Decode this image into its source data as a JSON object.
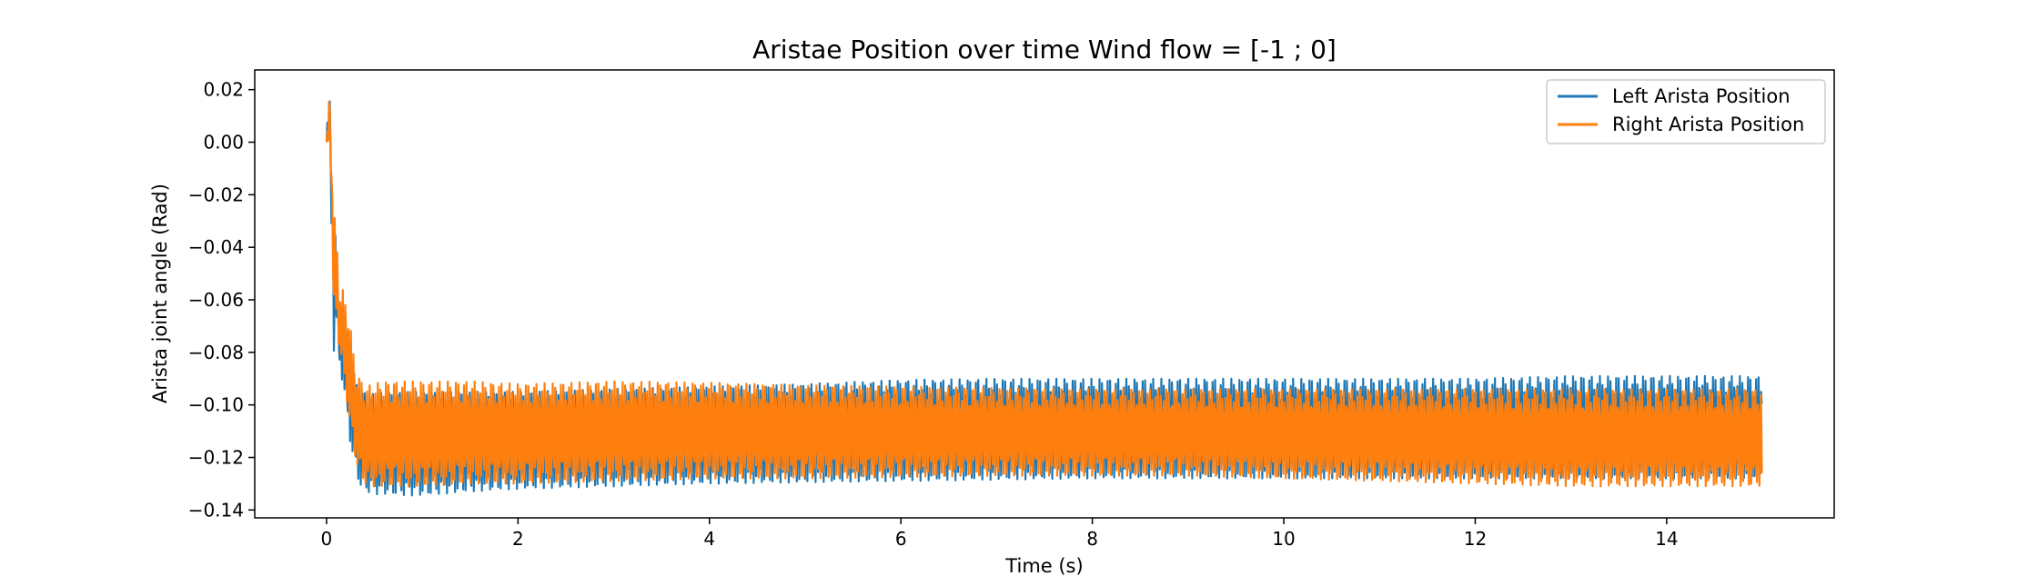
{
  "chart_data": {
    "type": "line",
    "title": "Aristae Position over time Wind flow = [-1 ; 0]",
    "xlabel": "Time (s)",
    "ylabel": "Arista joint angle (Rad)",
    "xlim": [
      -0.75,
      15.75
    ],
    "ylim": [
      -0.143,
      0.0275
    ],
    "xticks": [
      0,
      2,
      4,
      6,
      8,
      10,
      12,
      14
    ],
    "xtick_labels": [
      "0",
      "2",
      "4",
      "6",
      "8",
      "10",
      "12",
      "14"
    ],
    "yticks": [
      0.02,
      0.0,
      -0.02,
      -0.04,
      -0.06,
      -0.08,
      -0.1,
      -0.12,
      -0.14
    ],
    "ytick_labels": [
      "0.02",
      "0.00",
      "−0.02",
      "−0.04",
      "−0.06",
      "−0.08",
      "−0.10",
      "−0.12",
      "−0.14"
    ],
    "grid": false,
    "legend_position": "top-right",
    "series": [
      {
        "name": "Left Arista Position",
        "color": "#1f77b4",
        "x": [
          0.0,
          0.02,
          0.04,
          0.06,
          0.08,
          0.1,
          0.12,
          0.14,
          0.16,
          0.2,
          0.25,
          0.3,
          0.35,
          0.4,
          0.5,
          0.6,
          0.8,
          1.0,
          1.5,
          2.0,
          3.0,
          4.0,
          5.0,
          6.0,
          7.0,
          8.0,
          9.0,
          10.0,
          11.0,
          12.0,
          13.0,
          14.0,
          15.0
        ],
        "y_max": [
          0.0,
          0.018,
          0.015,
          -0.02,
          -0.04,
          -0.03,
          -0.06,
          -0.07,
          -0.06,
          -0.07,
          -0.08,
          -0.09,
          -0.094,
          -0.095,
          -0.096,
          -0.095,
          -0.095,
          -0.095,
          -0.095,
          -0.095,
          -0.094,
          -0.093,
          -0.092,
          -0.0905,
          -0.09,
          -0.09,
          -0.09,
          -0.09,
          -0.09,
          -0.09,
          -0.089,
          -0.089,
          -0.089
        ],
        "y_min": [
          0.0,
          0.0,
          -0.01,
          -0.05,
          -0.086,
          -0.07,
          -0.08,
          -0.085,
          -0.09,
          -0.1,
          -0.115,
          -0.125,
          -0.131,
          -0.133,
          -0.134,
          -0.134,
          -0.1345,
          -0.1345,
          -0.133,
          -0.132,
          -0.131,
          -0.13,
          -0.1295,
          -0.129,
          -0.1285,
          -0.128,
          -0.128,
          -0.128,
          -0.128,
          -0.128,
          -0.128,
          -0.128,
          -0.128
        ]
      },
      {
        "name": "Right Arista Position",
        "color": "#ff7f0e",
        "x": [
          0.0,
          0.02,
          0.04,
          0.06,
          0.08,
          0.1,
          0.12,
          0.14,
          0.16,
          0.2,
          0.25,
          0.3,
          0.35,
          0.4,
          0.5,
          0.6,
          0.8,
          1.0,
          1.5,
          2.0,
          3.0,
          4.0,
          5.0,
          6.0,
          7.0,
          8.0,
          9.0,
          10.0,
          11.0,
          12.0,
          13.0,
          14.0,
          15.0
        ],
        "y_max": [
          0.0,
          0.02,
          0.016,
          -0.02,
          -0.03,
          -0.025,
          -0.05,
          -0.06,
          -0.055,
          -0.06,
          -0.07,
          -0.085,
          -0.09,
          -0.093,
          -0.092,
          -0.091,
          -0.091,
          -0.091,
          -0.091,
          -0.092,
          -0.091,
          -0.0915,
          -0.0925,
          -0.093,
          -0.0935,
          -0.094,
          -0.094,
          -0.094,
          -0.094,
          -0.094,
          -0.094,
          -0.094,
          -0.094
        ],
        "y_min": [
          0.0,
          0.0,
          -0.005,
          -0.04,
          -0.076,
          -0.065,
          -0.075,
          -0.08,
          -0.085,
          -0.095,
          -0.11,
          -0.12,
          -0.128,
          -0.13,
          -0.131,
          -0.131,
          -0.131,
          -0.131,
          -0.13,
          -0.13,
          -0.129,
          -0.128,
          -0.128,
          -0.1275,
          -0.127,
          -0.127,
          -0.127,
          -0.128,
          -0.129,
          -0.13,
          -0.131,
          -0.131,
          -0.131
        ]
      }
    ]
  }
}
